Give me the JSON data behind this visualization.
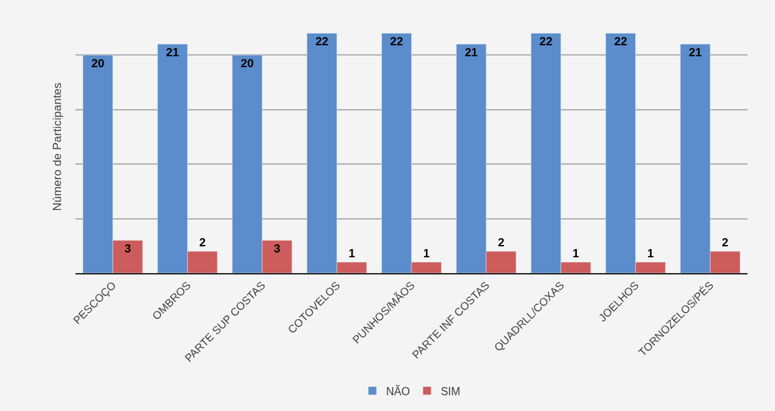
{
  "chart_data": {
    "type": "bar",
    "ylabel": "Número de Participantes",
    "categories": [
      "PESCOÇO",
      "OMBROS",
      "PARTE SUP COSTAS",
      "COTOVELOS",
      "PUNHOS/MÃOS",
      "PARTE INF COSTAS",
      "QUADRLL/COXAS",
      "JOELHOS",
      "TORNOZELOS/PÉS"
    ],
    "series": [
      {
        "name": "NÃO",
        "color": "#5b8ccb",
        "values": [
          20,
          21,
          20,
          22,
          22,
          21,
          22,
          22,
          21
        ]
      },
      {
        "name": "SIM",
        "color": "#cd5c5c",
        "values": [
          3,
          2,
          3,
          1,
          1,
          2,
          1,
          1,
          2
        ]
      }
    ],
    "tick_labels": "x",
    "grid": "y",
    "legend": "bottom",
    "data_labels": true
  }
}
